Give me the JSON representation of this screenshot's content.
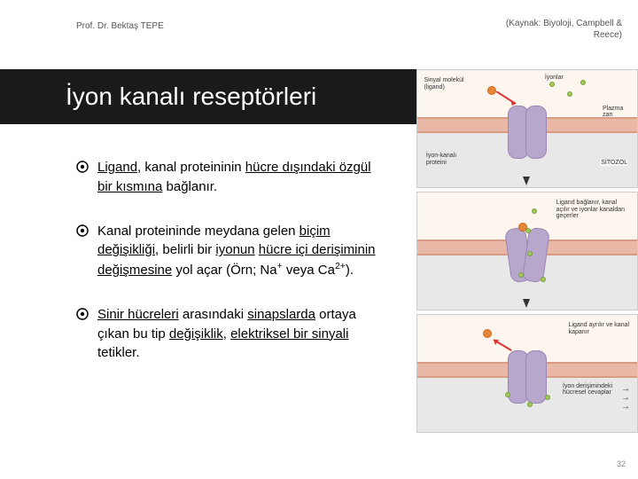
{
  "author": "Prof. Dr. Bektaş TEPE",
  "source_line1": "(Kaynak: Biyoloji, Campbell &",
  "source_line2": "Reece)",
  "title": "İyon kanalı reseptörleri",
  "bullets": [
    {
      "html": "<u>Ligand</u>, kanal proteininin <u>hücre dışındaki özgül bir kısmına</u> bağlanır."
    },
    {
      "html": "Kanal proteininde meydana gelen <u>biçim değişikliği</u>, belirli bir <u>iyonun</u> <u>hücre içi derişiminin değişmesine</u> yol açar (Örn; Na<sup>+</sup> veya Ca<sup>2+</sup>)."
    },
    {
      "html": "<u>Sinir hücreleri</u> arasındaki <u>sinapslarda</u> ortaya çıkan bu tip <u>değişiklik</u>, <u>elektriksel bir sinyali</u> tetikler."
    }
  ],
  "figure1": {
    "labels": {
      "iyonlar": "İyonlar",
      "sinyal": "Sinyal molekül (ligand)",
      "plazma": "Plazma zarı",
      "iyon_kanal": "İyon-kanalı proteini",
      "sitozol": "SİTOZOL"
    }
  },
  "figure2": {
    "caption": "Ligand bağlanır, kanal açılır ve iyonlar kanaldan geçerler"
  },
  "figure3": {
    "caption": "Ligand ayrılır ve kanal kapanır",
    "response": "İyon derişimindeki hücresel cevaplar"
  },
  "page_number": "32",
  "colors": {
    "title_bg": "#1a1a1a",
    "membrane": "#e9b8a6",
    "channel": "#b7a7cc",
    "ligand": "#e8863a",
    "ion": "#a0c85a",
    "cytosol": "#e8e8e8",
    "extracellular": "#fdf6ee"
  }
}
